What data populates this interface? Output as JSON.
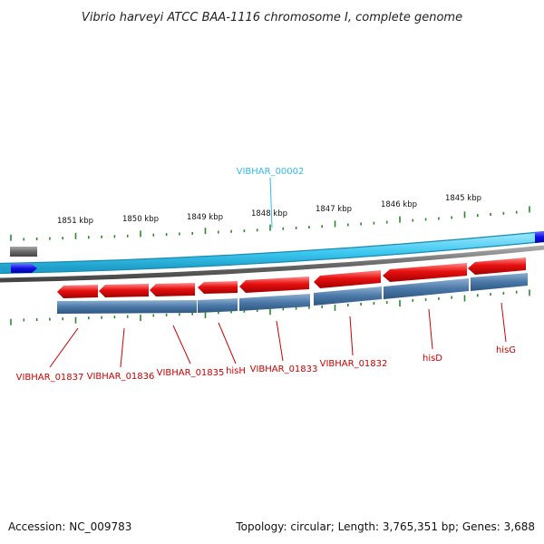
{
  "title": "Vibrio harveyi ATCC BAA-1116 chromosome I, complete genome",
  "scale": {
    "ticks": [
      "1851 kbp",
      "1850 kbp",
      "1849 kbp",
      "1848 kbp",
      "1847 kbp",
      "1846 kbp",
      "1845 kbp"
    ]
  },
  "genes": [
    {
      "name": "VIBHAR_00002",
      "strand": "forward",
      "color": "#33ccee"
    },
    {
      "name": "VIBHAR_01837",
      "strand": "reverse",
      "color": "#cc0000"
    },
    {
      "name": "VIBHAR_01836",
      "strand": "reverse",
      "color": "#cc0000"
    },
    {
      "name": "VIBHAR_01835",
      "strand": "reverse",
      "color": "#cc0000"
    },
    {
      "name": "hisH",
      "strand": "reverse",
      "color": "#cc0000"
    },
    {
      "name": "VIBHAR_01833",
      "strand": "reverse",
      "color": "#cc0000"
    },
    {
      "name": "VIBHAR_01832",
      "strand": "reverse",
      "color": "#cc0000"
    },
    {
      "name": "hisD",
      "strand": "reverse",
      "color": "#cc0000"
    },
    {
      "name": "hisG",
      "strand": "reverse",
      "color": "#cc0000"
    }
  ],
  "footer": {
    "accession": "Accession: NC_009783",
    "stats": "Topology: circular; Length: 3,765,351 bp; Genes: 3,688"
  },
  "colors": {
    "forward_track": "#3cc8f0",
    "forward_gene": "#1e1ee6",
    "reverse_gene": "#e81010",
    "reverse_track": "#4a78a8",
    "tick_green": "#2a8a2a",
    "backbone": "#8a8a8a"
  }
}
